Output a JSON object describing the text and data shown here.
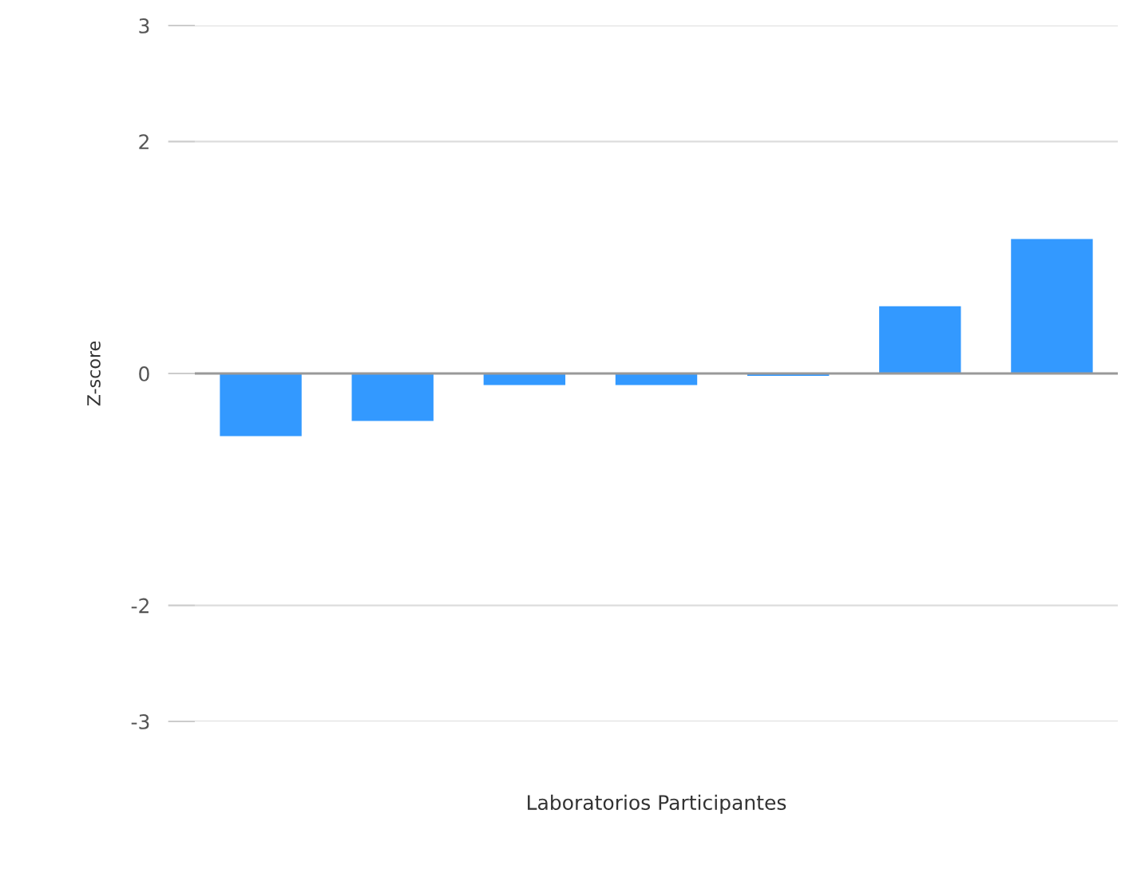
{
  "chart_data": {
    "type": "bar",
    "xlabel": "Laboratorios Participantes",
    "ylabel": "Z-score",
    "categories": [
      null,
      null,
      null,
      null,
      null,
      null,
      null
    ],
    "values": [
      -0.54,
      -0.41,
      -0.1,
      -0.1,
      -0.02,
      0.58,
      1.16
    ],
    "color": "#3399ff",
    "ylim": [
      -3,
      3
    ],
    "yticks": [
      -3,
      -2,
      0,
      2,
      3
    ],
    "grid": "y"
  }
}
